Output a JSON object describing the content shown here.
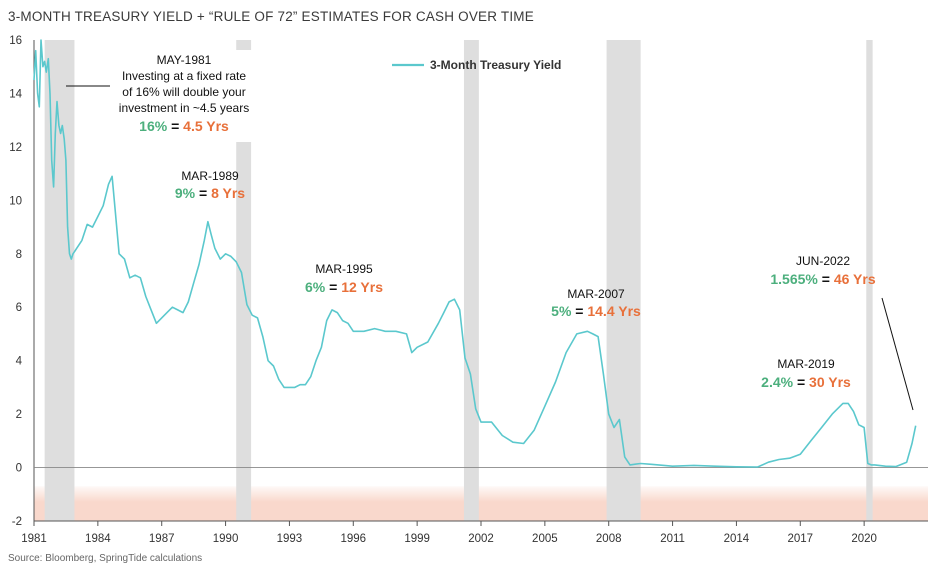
{
  "chart_data": {
    "type": "line",
    "title": "3-MONTH TREASURY YIELD + “RULE OF 72” ESTIMATES FOR CASH OVER TIME",
    "source": "Source: Bloomberg, SpringTide calculations",
    "xlim": [
      1981.0,
      2023.0
    ],
    "ylim": [
      -2,
      16
    ],
    "y_ticks": [
      -2,
      0,
      2,
      4,
      6,
      8,
      10,
      12,
      14,
      16
    ],
    "x_ticks": [
      "1981",
      "1984",
      "1987",
      "1990",
      "1993",
      "1996",
      "1999",
      "2002",
      "2005",
      "2008",
      "2011",
      "2014",
      "2017",
      "2020"
    ],
    "grid": false,
    "legend_position": "top-center",
    "recessions": [
      [
        1981.5,
        1982.9
      ],
      [
        1990.5,
        1991.2
      ],
      [
        2001.2,
        2001.9
      ],
      [
        2007.9,
        2009.5
      ],
      [
        2020.1,
        2020.4
      ]
    ],
    "negative_zone": [
      -2,
      -0.7
    ],
    "series": [
      {
        "name": "3-Month Treasury Yield",
        "color": "#5bc8cd",
        "x": [
          1981.0,
          1981.08,
          1981.17,
          1981.25,
          1981.33,
          1981.42,
          1981.5,
          1981.58,
          1981.67,
          1981.75,
          1981.83,
          1981.92,
          1982.0,
          1982.08,
          1982.17,
          1982.25,
          1982.33,
          1982.42,
          1982.5,
          1982.58,
          1982.67,
          1982.75,
          1982.83,
          1982.92,
          1983.0,
          1983.25,
          1983.5,
          1983.75,
          1984.0,
          1984.25,
          1984.5,
          1984.67,
          1984.83,
          1985.0,
          1985.25,
          1985.5,
          1985.75,
          1986.0,
          1986.25,
          1986.5,
          1986.75,
          1987.0,
          1987.25,
          1987.5,
          1987.75,
          1988.0,
          1988.25,
          1988.5,
          1988.75,
          1989.0,
          1989.17,
          1989.33,
          1989.5,
          1989.75,
          1990.0,
          1990.25,
          1990.5,
          1990.75,
          1991.0,
          1991.25,
          1991.5,
          1991.75,
          1992.0,
          1992.25,
          1992.5,
          1992.75,
          1993.0,
          1993.25,
          1993.5,
          1993.75,
          1994.0,
          1994.25,
          1994.5,
          1994.75,
          1995.0,
          1995.25,
          1995.5,
          1995.75,
          1996.0,
          1996.5,
          1997.0,
          1997.5,
          1998.0,
          1998.5,
          1998.75,
          1999.0,
          1999.5,
          2000.0,
          2000.25,
          2000.5,
          2000.75,
          2001.0,
          2001.25,
          2001.5,
          2001.75,
          2002.0,
          2002.5,
          2003.0,
          2003.5,
          2004.0,
          2004.5,
          2005.0,
          2005.5,
          2006.0,
          2006.5,
          2007.0,
          2007.25,
          2007.5,
          2007.75,
          2008.0,
          2008.25,
          2008.5,
          2008.75,
          2009.0,
          2009.5,
          2010.0,
          2011.0,
          2012.0,
          2013.0,
          2014.0,
          2015.0,
          2015.5,
          2016.0,
          2016.5,
          2017.0,
          2017.5,
          2018.0,
          2018.5,
          2019.0,
          2019.25,
          2019.5,
          2019.75,
          2020.0,
          2020.17,
          2020.33,
          2020.5,
          2021.0,
          2021.5,
          2022.0,
          2022.25,
          2022.42
        ],
        "values": [
          14.5,
          15.6,
          14.0,
          13.5,
          16.0,
          15.0,
          15.2,
          14.8,
          15.3,
          14.0,
          11.5,
          10.5,
          12.5,
          13.7,
          12.8,
          12.5,
          12.8,
          12.3,
          11.5,
          9.0,
          8.0,
          7.8,
          8.0,
          8.1,
          8.2,
          8.5,
          9.1,
          9.0,
          9.4,
          9.8,
          10.6,
          10.9,
          9.5,
          8.0,
          7.8,
          7.1,
          7.2,
          7.1,
          6.4,
          5.9,
          5.4,
          5.6,
          5.8,
          6.0,
          5.9,
          5.8,
          6.2,
          6.9,
          7.6,
          8.5,
          9.2,
          8.7,
          8.2,
          7.8,
          8.0,
          7.9,
          7.7,
          7.3,
          6.1,
          5.7,
          5.6,
          4.9,
          4.0,
          3.8,
          3.3,
          3.0,
          3.0,
          3.0,
          3.1,
          3.1,
          3.4,
          4.0,
          4.5,
          5.5,
          5.9,
          5.8,
          5.5,
          5.4,
          5.1,
          5.1,
          5.2,
          5.1,
          5.1,
          5.0,
          4.3,
          4.5,
          4.7,
          5.4,
          5.8,
          6.2,
          6.3,
          5.9,
          4.1,
          3.5,
          2.2,
          1.7,
          1.7,
          1.2,
          0.95,
          0.9,
          1.4,
          2.3,
          3.2,
          4.3,
          5.0,
          5.1,
          5.0,
          4.9,
          3.5,
          2.0,
          1.5,
          1.8,
          0.4,
          0.1,
          0.15,
          0.12,
          0.05,
          0.08,
          0.05,
          0.03,
          0.02,
          0.2,
          0.3,
          0.35,
          0.5,
          1.0,
          1.5,
          2.0,
          2.4,
          2.4,
          2.1,
          1.6,
          1.5,
          0.15,
          0.1,
          0.1,
          0.05,
          0.04,
          0.2,
          0.9,
          1.565
        ]
      }
    ],
    "annotations": [
      {
        "date": "MAY-1981",
        "lines": [
          "Investing at a fixed rate",
          "of 16% will double your",
          "investment in ~4.5 years"
        ],
        "rate": "16%",
        "eq": " = ",
        "years": "4.5 Yrs"
      },
      {
        "date": "MAR-1989",
        "rate": "9%",
        "eq": " = ",
        "years": "8 Yrs"
      },
      {
        "date": "MAR-1995",
        "rate": "6%",
        "eq": " = ",
        "years": "12 Yrs"
      },
      {
        "date": "MAR-2007",
        "rate": "5%",
        "eq": " = ",
        "years": "14.4 Yrs"
      },
      {
        "date": "MAR-2019",
        "rate": "2.4%",
        "eq": " = ",
        "years": "30 Yrs"
      },
      {
        "date": "JUN-2022",
        "rate": "1.565%",
        "eq": " = ",
        "years": "46 Yrs"
      }
    ],
    "colors": {
      "line": "#5bc8cd",
      "recession": "#dedede",
      "negative_zone": "#f9d8cc",
      "rate_green": "#4caf7d",
      "years_orange": "#e8703a"
    }
  }
}
